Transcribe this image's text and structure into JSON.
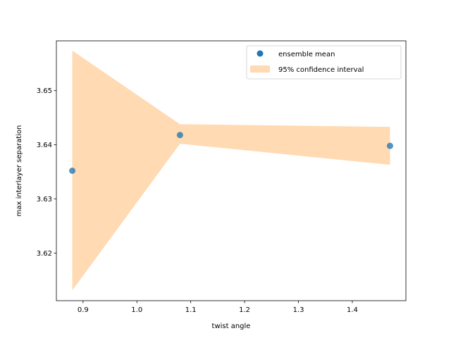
{
  "chart_data": {
    "type": "scatter",
    "title": "",
    "xlabel": "twist angle",
    "ylabel": "max interlayer separation",
    "xlim": [
      0.8505,
      1.4995
    ],
    "ylim": [
      3.6112,
      3.6592
    ],
    "xticks": [
      0.9,
      1.0,
      1.1,
      1.2,
      1.3,
      1.4
    ],
    "xtick_labels": [
      "0.9",
      "1.0",
      "1.1",
      "1.2",
      "1.3",
      "1.4"
    ],
    "yticks": [
      3.62,
      3.63,
      3.64,
      3.65
    ],
    "ytick_labels": [
      "3.62",
      "3.63",
      "3.64",
      "3.65"
    ],
    "grid": false,
    "legend_position": "top-right",
    "series": [
      {
        "name": "ensemble mean",
        "kind": "scatter",
        "color": "#1f77b4",
        "x": [
          0.88,
          1.08,
          1.47
        ],
        "y": [
          3.6352,
          3.6418,
          3.6398
        ]
      },
      {
        "name": "95% confidence interval",
        "kind": "band",
        "color": "#ffdab3",
        "x": [
          0.88,
          1.08,
          1.47
        ],
        "lower": [
          3.6131,
          3.6402,
          3.6363
        ],
        "upper": [
          3.6574,
          3.6438,
          3.6433
        ]
      }
    ]
  }
}
